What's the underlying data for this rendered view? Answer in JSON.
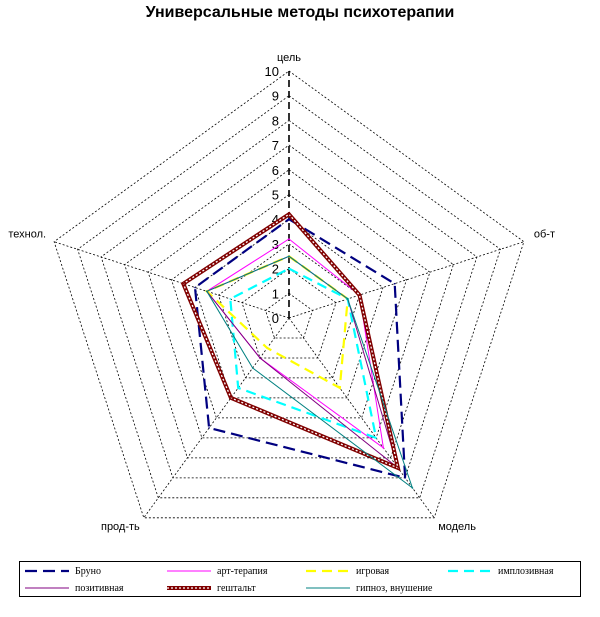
{
  "chart_data": {
    "type": "radar",
    "title": "Универсальные методы психотерапии",
    "axes": [
      "цель",
      "об-т",
      "модель",
      "прод-ть",
      "технол."
    ],
    "rlim": [
      0,
      10
    ],
    "ticks": [
      "0",
      "1",
      "2",
      "3",
      "4",
      "5",
      "6",
      "7",
      "8",
      "9",
      "10"
    ],
    "grid": true,
    "legend_position": "bottom",
    "series": [
      {
        "name": "Бруно",
        "color": "#000080",
        "style": "longdash",
        "values": [
          4.0,
          4.5,
          8.0,
          5.5,
          4.0
        ]
      },
      {
        "name": "арт-терапия",
        "color": "#ff00ff",
        "style": "solid",
        "values": [
          3.2,
          3.0,
          6.5,
          2.0,
          3.5
        ]
      },
      {
        "name": "игровая",
        "color": "#ffff00",
        "style": "dash",
        "values": [
          2.5,
          2.5,
          3.5,
          1.5,
          3.5
        ]
      },
      {
        "name": "имплозивная",
        "color": "#00ffff",
        "style": "dash",
        "values": [
          2.0,
          2.5,
          6.0,
          3.5,
          2.5
        ]
      },
      {
        "name": "позитивная",
        "color": "#800080",
        "style": "solid",
        "values": [
          2.5,
          2.5,
          7.5,
          2.0,
          3.5
        ]
      },
      {
        "name": "гештальт",
        "color": "#800000",
        "style": "double",
        "values": [
          4.2,
          3.0,
          7.5,
          4.0,
          4.5
        ]
      },
      {
        "name": "гипноз, внушение",
        "color": "#008080",
        "style": "solid",
        "values": [
          2.5,
          2.5,
          8.5,
          2.5,
          3.5
        ]
      }
    ]
  }
}
